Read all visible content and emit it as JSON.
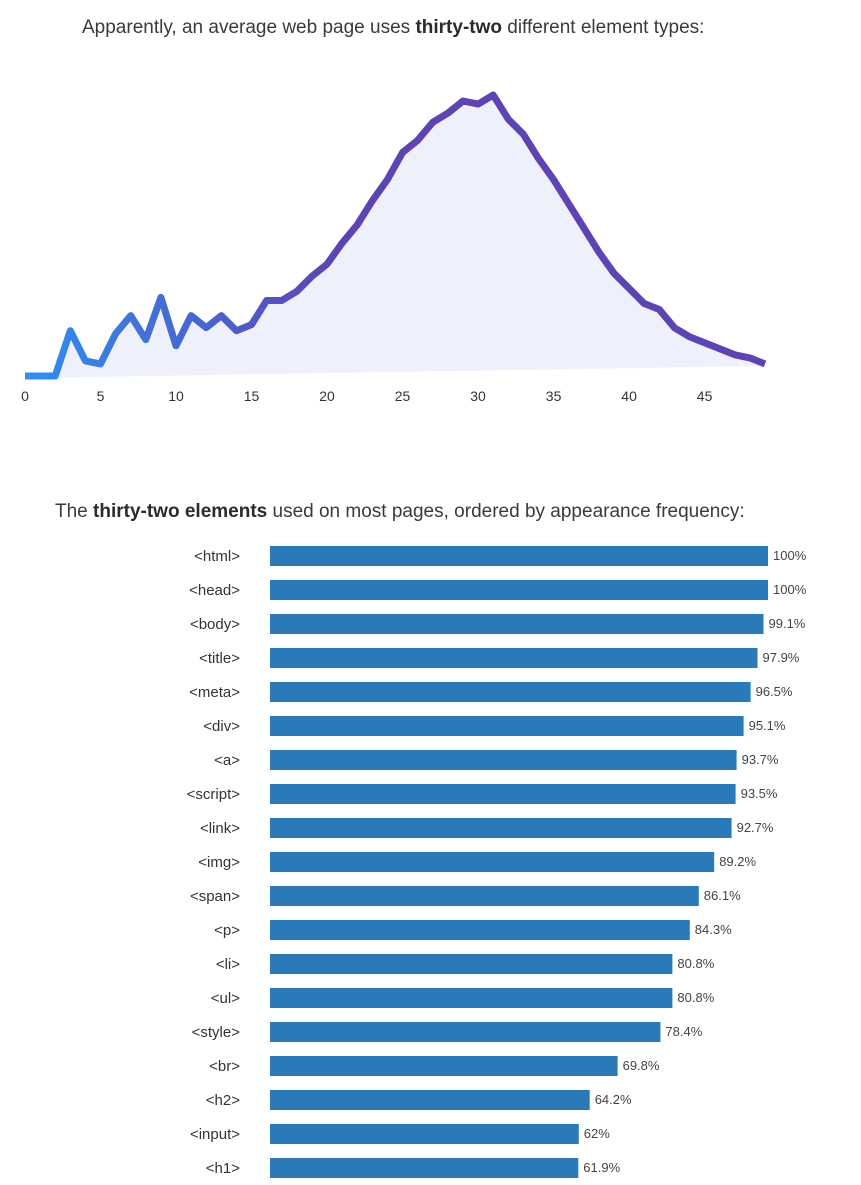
{
  "intro_1": {
    "before": "Apparently, an average web page uses ",
    "bold": "thirty-two",
    "after": " different element types:"
  },
  "intro_2": {
    "before": "The ",
    "bold": "thirty-two elements",
    "after": " used on most pages, ordered by appearance frequency:"
  },
  "chart_data": [
    {
      "type": "area",
      "title": "",
      "xlabel": "",
      "ylabel": "",
      "xlim": [
        0,
        49
      ],
      "xticks": [
        0,
        5,
        10,
        15,
        20,
        25,
        30,
        35,
        40,
        45
      ],
      "grid": false,
      "colors": {
        "line_start": "#2f8ff0",
        "line_end": "#5e44b3",
        "fill": "#eef0fb"
      },
      "x": [
        0,
        1,
        2,
        3,
        4,
        5,
        6,
        7,
        8,
        9,
        10,
        11,
        12,
        13,
        14,
        15,
        16,
        17,
        18,
        19,
        20,
        21,
        22,
        23,
        24,
        25,
        26,
        27,
        28,
        29,
        30,
        31,
        32,
        33,
        34,
        35,
        36,
        37,
        38,
        39,
        40,
        41,
        42,
        43,
        44,
        45,
        46,
        47,
        48,
        49
      ],
      "values": [
        0,
        0,
        0,
        15,
        5,
        4,
        14,
        20,
        12,
        26,
        10,
        20,
        16,
        20,
        15,
        17,
        25,
        25,
        28,
        33,
        37,
        44,
        50,
        58,
        65,
        74,
        78,
        84,
        87,
        91,
        90,
        93,
        85,
        80,
        72,
        65,
        57,
        49,
        41,
        34,
        29,
        24,
        22,
        16,
        13,
        11,
        9,
        7,
        6,
        4
      ]
    },
    {
      "type": "bar",
      "orientation": "horizontal",
      "title": "",
      "xlabel": "",
      "ylabel": "",
      "xlim": [
        0,
        100
      ],
      "color": "#2a7ab9",
      "categories": [
        "<html>",
        "<head>",
        "<body>",
        "<title>",
        "<meta>",
        "<div>",
        "<a>",
        "<script>",
        "<link>",
        "<img>",
        "<span>",
        "<p>",
        "<li>",
        "<ul>",
        "<style>",
        "<br>",
        "<h2>",
        "<input>",
        "<h1>"
      ],
      "values": [
        100,
        100,
        99.1,
        97.9,
        96.5,
        95.1,
        93.7,
        93.5,
        92.7,
        89.2,
        86.1,
        84.3,
        80.8,
        80.8,
        78.4,
        69.8,
        64.2,
        62,
        61.9
      ],
      "labels": [
        "100%",
        "100%",
        "99.1%",
        "97.9%",
        "96.5%",
        "95.1%",
        "93.7%",
        "93.5%",
        "92.7%",
        "89.2%",
        "86.1%",
        "84.3%",
        "80.8%",
        "80.8%",
        "78.4%",
        "69.8%",
        "64.2%",
        "62%",
        "61.9%"
      ]
    }
  ]
}
